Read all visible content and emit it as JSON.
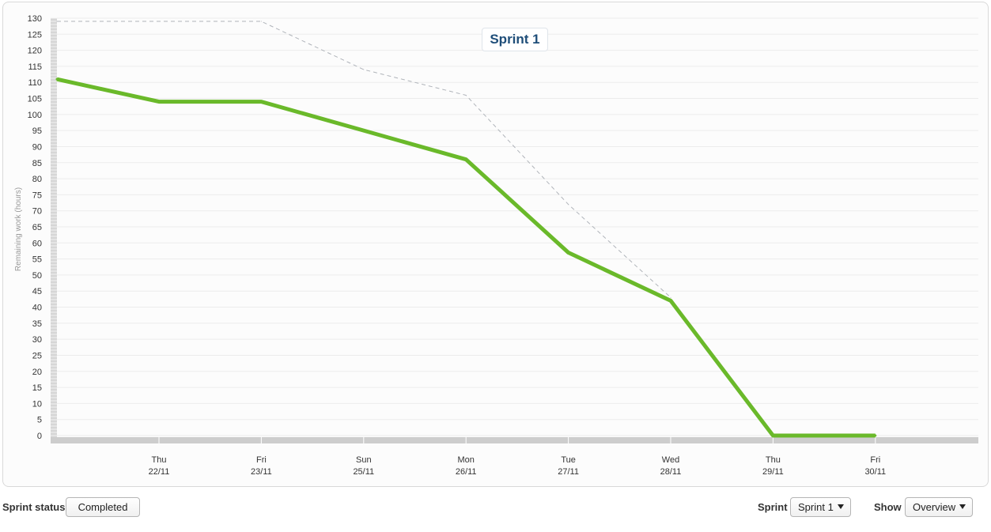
{
  "chart_data": {
    "type": "line",
    "title": "Sprint 1",
    "ylabel": "Remaining work (hours)",
    "xlabel": "",
    "ylim": [
      0,
      130
    ],
    "yticks": [
      0,
      5,
      10,
      15,
      20,
      25,
      30,
      35,
      40,
      45,
      50,
      55,
      60,
      65,
      70,
      75,
      80,
      85,
      90,
      95,
      100,
      105,
      110,
      115,
      120,
      125,
      130
    ],
    "x": [
      {
        "day": "Thu",
        "date": "22/11"
      },
      {
        "day": "Fri",
        "date": "23/11"
      },
      {
        "day": "Sun",
        "date": "25/11"
      },
      {
        "day": "Mon",
        "date": "26/11"
      },
      {
        "day": "Tue",
        "date": "27/11"
      },
      {
        "day": "Wed",
        "date": "28/11"
      },
      {
        "day": "Thu",
        "date": "29/11"
      },
      {
        "day": "Fri",
        "date": "30/11"
      }
    ],
    "series": [
      {
        "style": "solid",
        "color": "#6ab92a",
        "points": [
          {
            "x": -1,
            "y": 111
          },
          {
            "x": 0,
            "y": 104
          },
          {
            "x": 1,
            "y": 104
          },
          {
            "x": 2,
            "y": 95
          },
          {
            "x": 3,
            "y": 86
          },
          {
            "x": 4,
            "y": 57
          },
          {
            "x": 5,
            "y": 42
          },
          {
            "x": 6,
            "y": 0
          },
          {
            "x": 7,
            "y": 0
          }
        ]
      },
      {
        "style": "dashed",
        "color": "#b0b4ba",
        "points": [
          {
            "x": -1,
            "y": 129
          },
          {
            "x": 1,
            "y": 129
          },
          {
            "x": 2,
            "y": 114
          },
          {
            "x": 3,
            "y": 106
          },
          {
            "x": 4,
            "y": 72
          },
          {
            "x": 5,
            "y": 43
          }
        ]
      }
    ],
    "grid": true,
    "legend": "none"
  },
  "footer": {
    "sprint_status_label": "Sprint status",
    "sprint_status_value": "Completed",
    "sprint_label": "Sprint",
    "sprint_selected": "Sprint 1",
    "show_label": "Show",
    "show_selected": "Overview"
  }
}
